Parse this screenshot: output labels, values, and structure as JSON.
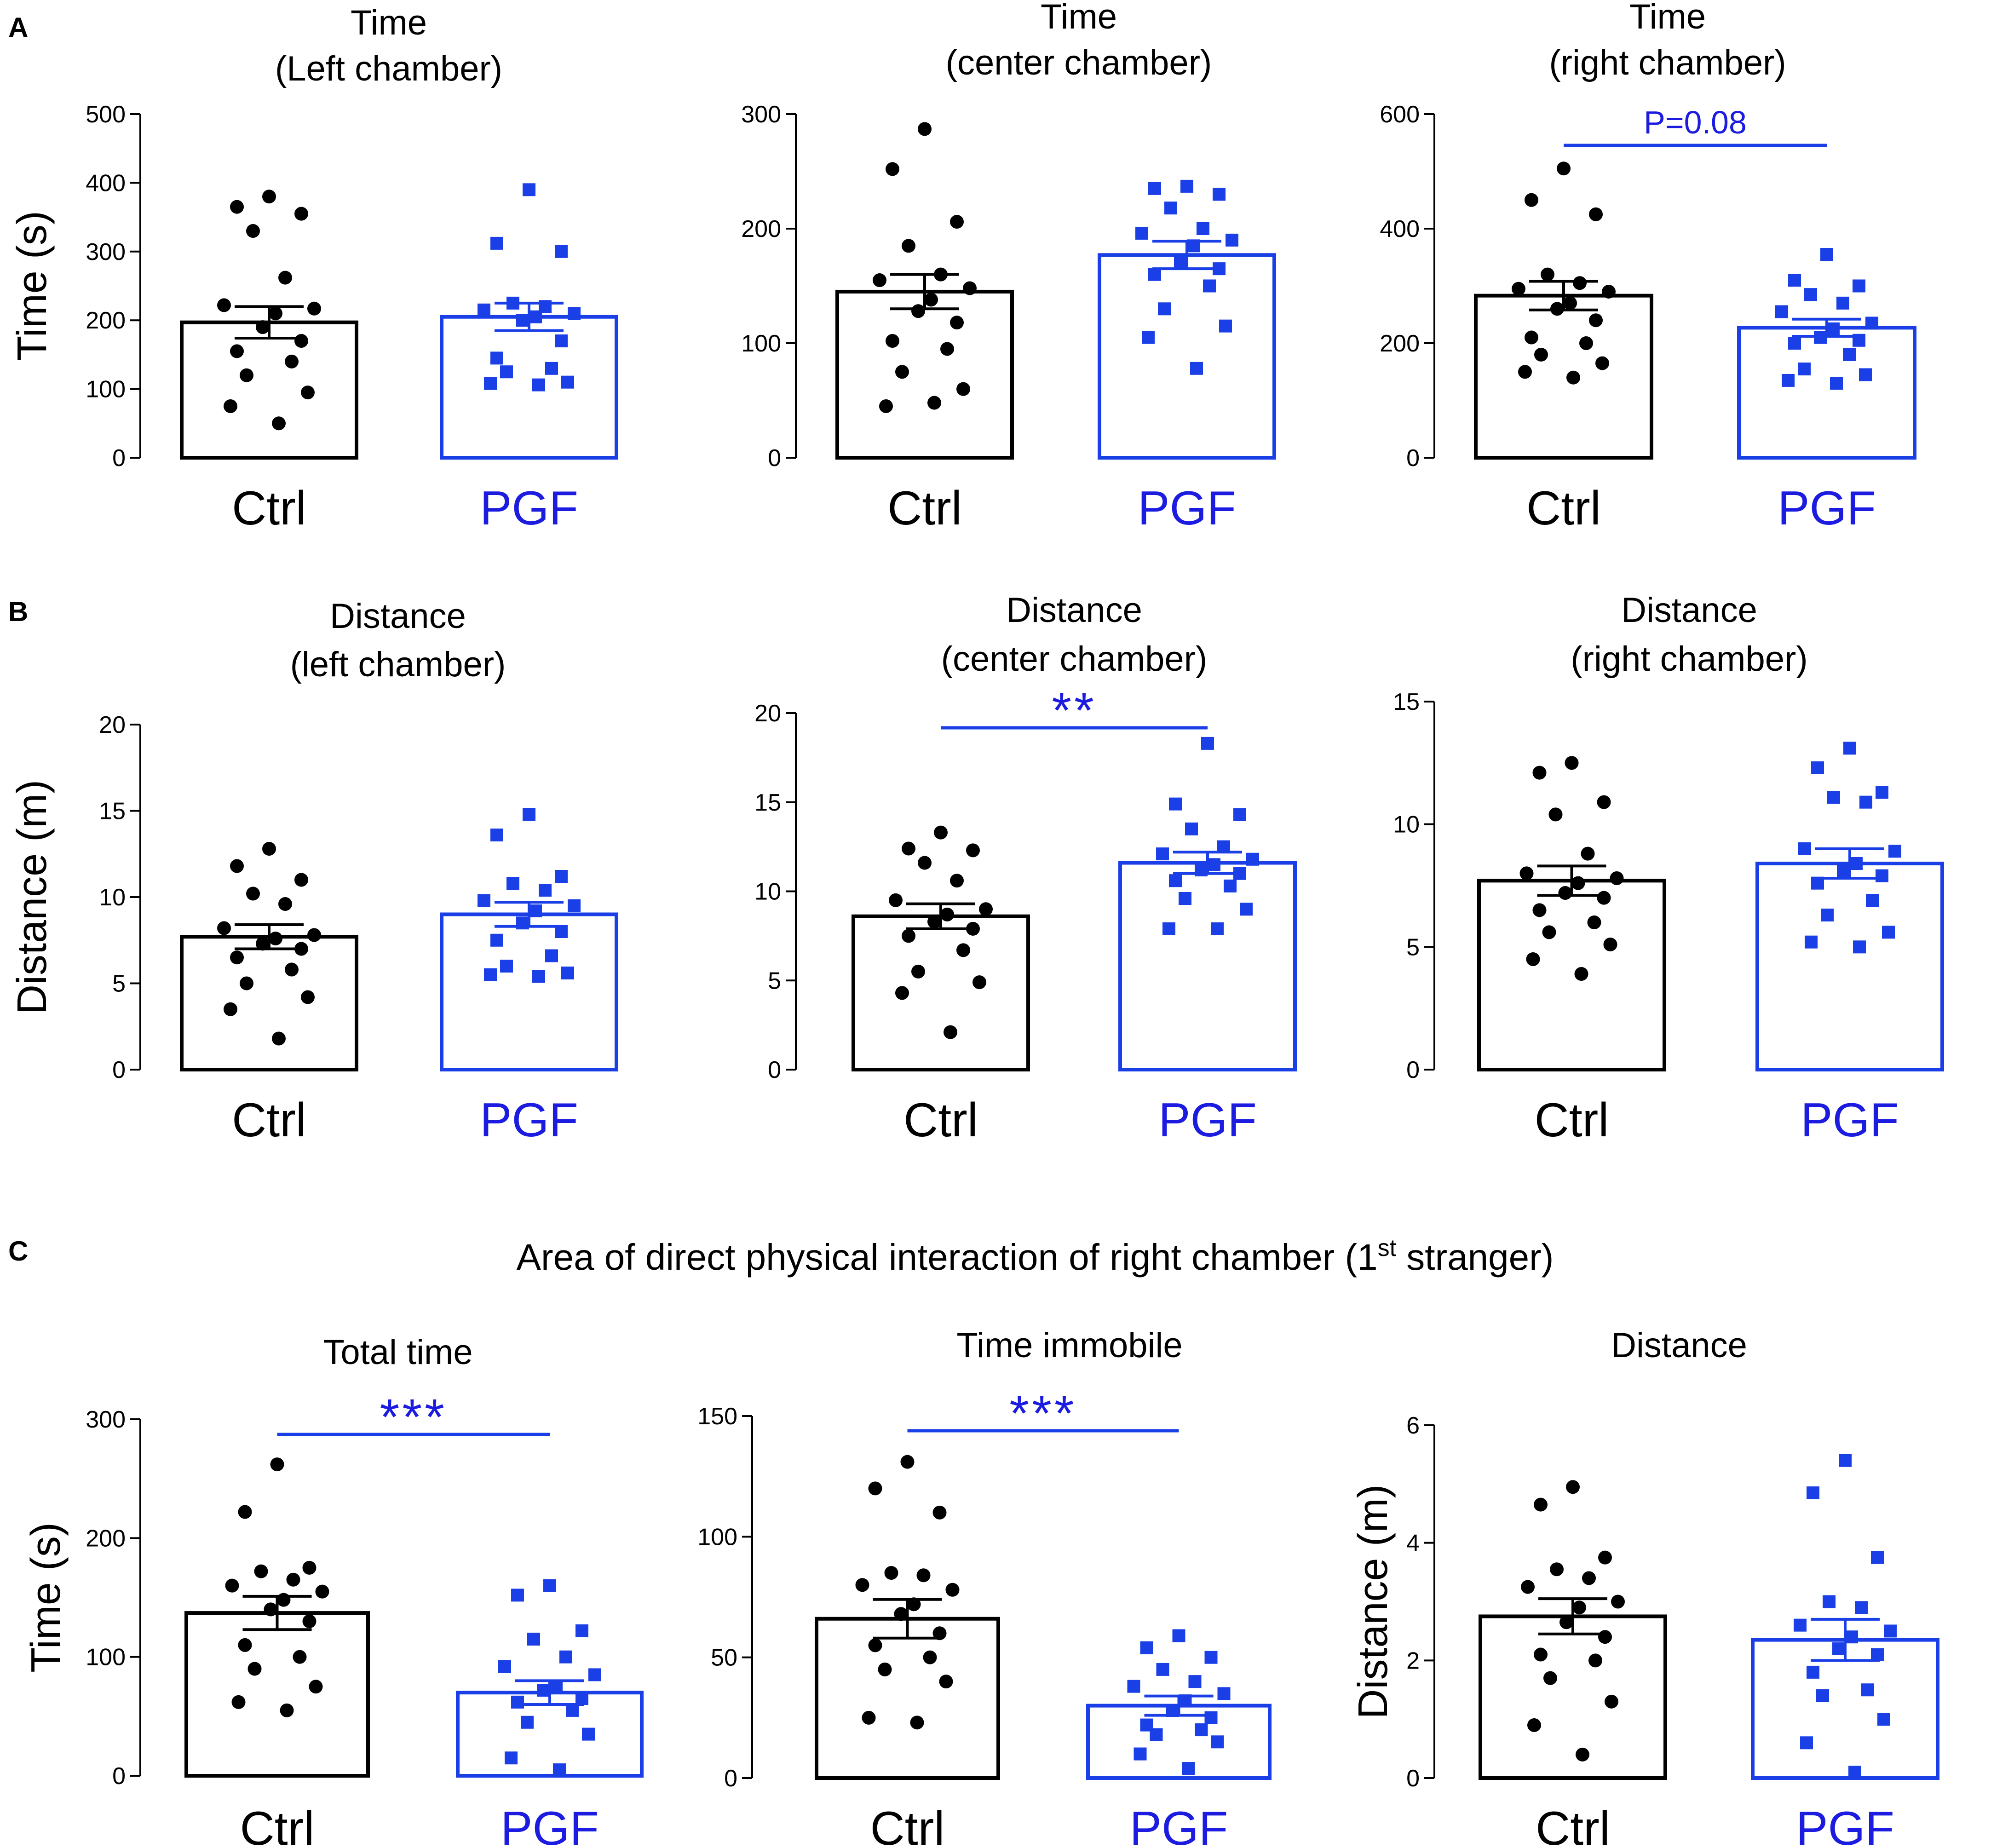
{
  "colors": {
    "ctrl": "#000000",
    "pgf": "#1a3fe6",
    "pgf_text": "#1c1ce0"
  },
  "section_c_header": {
    "text": "Area of direct physical interaction of right chamber (1",
    "sup": "st",
    "tail": " stranger)"
  },
  "chart_data": [
    {
      "id": "A1",
      "panel_letter": "A",
      "type": "bar",
      "title_lines": [
        "Time",
        "(Left chamber)"
      ],
      "ylabel": "Time (s)",
      "ylim": [
        0,
        500
      ],
      "yticks": [
        "0",
        "100",
        "200",
        "300",
        "400",
        "500"
      ],
      "categories": [
        "Ctrl",
        "PGF"
      ],
      "series": [
        {
          "name": "Ctrl",
          "mean": 197,
          "sem": 23,
          "points": [
            380,
            365,
            355,
            330,
            262,
            222,
            217,
            210,
            190,
            170,
            155,
            140,
            120,
            95,
            75,
            50
          ]
        },
        {
          "name": "PGF",
          "mean": 205,
          "sem": 20,
          "points": [
            390,
            312,
            300,
            225,
            220,
            215,
            210,
            205,
            200,
            170,
            145,
            130,
            125,
            110,
            108,
            106
          ]
        }
      ],
      "significance": null
    },
    {
      "id": "A2",
      "panel_letter": "",
      "type": "bar",
      "title_lines": [
        "Time",
        "(center chamber)"
      ],
      "ylabel": "",
      "ylim": [
        0,
        300
      ],
      "yticks": [
        "0",
        "100",
        "200",
        "300"
      ],
      "categories": [
        "Ctrl",
        "PGF"
      ],
      "series": [
        {
          "name": "Ctrl",
          "mean": 145,
          "sem": 15,
          "points": [
            287,
            252,
            206,
            185,
            160,
            155,
            148,
            138,
            128,
            118,
            102,
            95,
            75,
            60,
            45,
            48
          ]
        },
        {
          "name": "PGF",
          "mean": 177,
          "sem": 12,
          "points": [
            237,
            235,
            230,
            218,
            200,
            196,
            190,
            185,
            170,
            165,
            160,
            150,
            130,
            115,
            105,
            78
          ]
        }
      ],
      "significance": null
    },
    {
      "id": "A3",
      "panel_letter": "",
      "type": "bar",
      "title_lines": [
        "Time",
        "(right chamber)"
      ],
      "ylabel": "",
      "ylim": [
        0,
        600
      ],
      "yticks": [
        "0",
        "200",
        "400",
        "600"
      ],
      "categories": [
        "Ctrl",
        "PGF"
      ],
      "series": [
        {
          "name": "Ctrl",
          "mean": 283,
          "sem": 25,
          "points": [
            505,
            450,
            425,
            320,
            305,
            295,
            290,
            270,
            260,
            240,
            210,
            200,
            180,
            165,
            150,
            140
          ]
        },
        {
          "name": "PGF",
          "mean": 227,
          "sem": 15,
          "points": [
            355,
            310,
            300,
            285,
            270,
            255,
            235,
            225,
            210,
            205,
            200,
            180,
            155,
            145,
            135,
            130
          ]
        }
      ],
      "significance": {
        "label": "P=0.08",
        "type": "text"
      }
    },
    {
      "id": "B1",
      "panel_letter": "B",
      "type": "bar",
      "title_lines": [
        "Distance",
        "(left chamber)"
      ],
      "ylabel": "Distance (m)",
      "ylim": [
        0,
        20
      ],
      "yticks": [
        "0",
        "5",
        "10",
        "15",
        "20"
      ],
      "categories": [
        "Ctrl",
        "PGF"
      ],
      "series": [
        {
          "name": "Ctrl",
          "mean": 7.7,
          "sem": 0.7,
          "points": [
            12.8,
            11.8,
            11.0,
            10.2,
            9.6,
            8.2,
            7.8,
            7.6,
            7.3,
            7.0,
            6.5,
            5.8,
            5.0,
            4.2,
            3.5,
            1.8
          ]
        },
        {
          "name": "PGF",
          "mean": 9.0,
          "sem": 0.7,
          "points": [
            14.8,
            13.6,
            11.2,
            10.8,
            10.4,
            9.8,
            9.5,
            9.2,
            8.5,
            8.0,
            7.5,
            6.6,
            6.0,
            5.6,
            5.5,
            5.4
          ]
        }
      ],
      "significance": null
    },
    {
      "id": "B2",
      "panel_letter": "",
      "type": "bar",
      "title_lines": [
        "Distance",
        "(center chamber)"
      ],
      "ylabel": "",
      "ylim": [
        0,
        20
      ],
      "yticks": [
        "0",
        "5",
        "10",
        "15",
        "20"
      ],
      "categories": [
        "Ctrl",
        "PGF"
      ],
      "series": [
        {
          "name": "Ctrl",
          "mean": 8.6,
          "sem": 0.7,
          "points": [
            13.3,
            12.4,
            12.3,
            11.6,
            10.6,
            9.5,
            9.0,
            8.7,
            8.3,
            7.9,
            7.5,
            6.7,
            5.5,
            4.9,
            4.3,
            2.1
          ]
        },
        {
          "name": "PGF",
          "mean": 11.6,
          "sem": 0.6,
          "points": [
            18.3,
            14.9,
            14.3,
            13.5,
            12.5,
            12.1,
            11.8,
            11.5,
            11.2,
            11.0,
            10.6,
            10.3,
            9.6,
            9.0,
            7.9,
            7.9
          ]
        }
      ],
      "significance": {
        "label": "**",
        "type": "stars"
      }
    },
    {
      "id": "B3",
      "panel_letter": "",
      "type": "bar",
      "title_lines": [
        "Distance",
        "(right chamber)"
      ],
      "ylabel": "",
      "ylim": [
        0,
        15
      ],
      "yticks": [
        "0",
        "5",
        "10",
        "15"
      ],
      "categories": [
        "Ctrl",
        "PGF"
      ],
      "series": [
        {
          "name": "Ctrl",
          "mean": 7.7,
          "sem": 0.6,
          "points": [
            12.5,
            12.1,
            10.9,
            10.4,
            8.8,
            8.0,
            7.8,
            7.6,
            7.2,
            7.0,
            6.5,
            6.0,
            5.6,
            5.1,
            4.5,
            3.9
          ]
        },
        {
          "name": "PGF",
          "mean": 8.4,
          "sem": 0.6,
          "points": [
            13.1,
            12.3,
            11.3,
            11.1,
            10.9,
            9.0,
            8.9,
            8.4,
            8.1,
            7.9,
            7.6,
            6.9,
            6.3,
            5.6,
            5.2,
            5.0
          ]
        }
      ],
      "significance": null
    },
    {
      "id": "C1",
      "panel_letter": "C",
      "type": "bar",
      "title_lines": [
        "Total time"
      ],
      "ylabel": "Time (s)",
      "ylim": [
        0,
        300
      ],
      "yticks": [
        "0",
        "100",
        "200",
        "300"
      ],
      "categories": [
        "Ctrl",
        "PGF"
      ],
      "series": [
        {
          "name": "Ctrl",
          "mean": 137,
          "sem": 14,
          "points": [
            262,
            222,
            175,
            172,
            165,
            160,
            155,
            148,
            140,
            130,
            110,
            100,
            90,
            75,
            62,
            55
          ]
        },
        {
          "name": "PGF",
          "mean": 70,
          "sem": 10,
          "points": [
            160,
            152,
            122,
            115,
            100,
            92,
            85,
            75,
            72,
            65,
            62,
            55,
            45,
            35,
            15,
            5
          ]
        }
      ],
      "significance": {
        "label": "***",
        "type": "stars"
      }
    },
    {
      "id": "C2",
      "panel_letter": "",
      "type": "bar",
      "title_lines": [
        "Time  immobile"
      ],
      "ylabel": "",
      "ylim": [
        0,
        150
      ],
      "yticks": [
        "0",
        "50",
        "100",
        "150"
      ],
      "categories": [
        "Ctrl",
        "PGF"
      ],
      "series": [
        {
          "name": "Ctrl",
          "mean": 66,
          "sem": 8,
          "points": [
            131,
            120,
            110,
            85,
            84,
            80,
            78,
            72,
            68,
            60,
            55,
            50,
            45,
            40,
            25,
            23
          ]
        },
        {
          "name": "PGF",
          "mean": 30,
          "sem": 4,
          "points": [
            59,
            54,
            50,
            45,
            40,
            38,
            35,
            32,
            28,
            25,
            22,
            20,
            18,
            15,
            10,
            4
          ]
        }
      ],
      "significance": {
        "label": "***",
        "type": "stars"
      }
    },
    {
      "id": "C3",
      "panel_letter": "",
      "type": "bar",
      "title_lines": [
        "Distance"
      ],
      "ylabel": "Distance (m)",
      "ylim": [
        0,
        6
      ],
      "yticks": [
        "0",
        "2",
        "4",
        "6"
      ],
      "categories": [
        "Ctrl",
        "PGF"
      ],
      "series": [
        {
          "name": "Ctrl",
          "mean": 2.75,
          "sem": 0.3,
          "points": [
            4.95,
            4.65,
            3.75,
            3.55,
            3.4,
            3.25,
            3.0,
            2.9,
            2.65,
            2.4,
            2.1,
            2.0,
            1.7,
            1.3,
            0.9,
            0.4
          ]
        },
        {
          "name": "PGF",
          "mean": 2.35,
          "sem": 0.35,
          "points": [
            5.4,
            4.85,
            3.75,
            3.0,
            2.9,
            2.6,
            2.5,
            2.4,
            2.2,
            2.1,
            1.8,
            1.5,
            1.4,
            1.0,
            0.6,
            0.1
          ]
        }
      ],
      "significance": null
    }
  ]
}
